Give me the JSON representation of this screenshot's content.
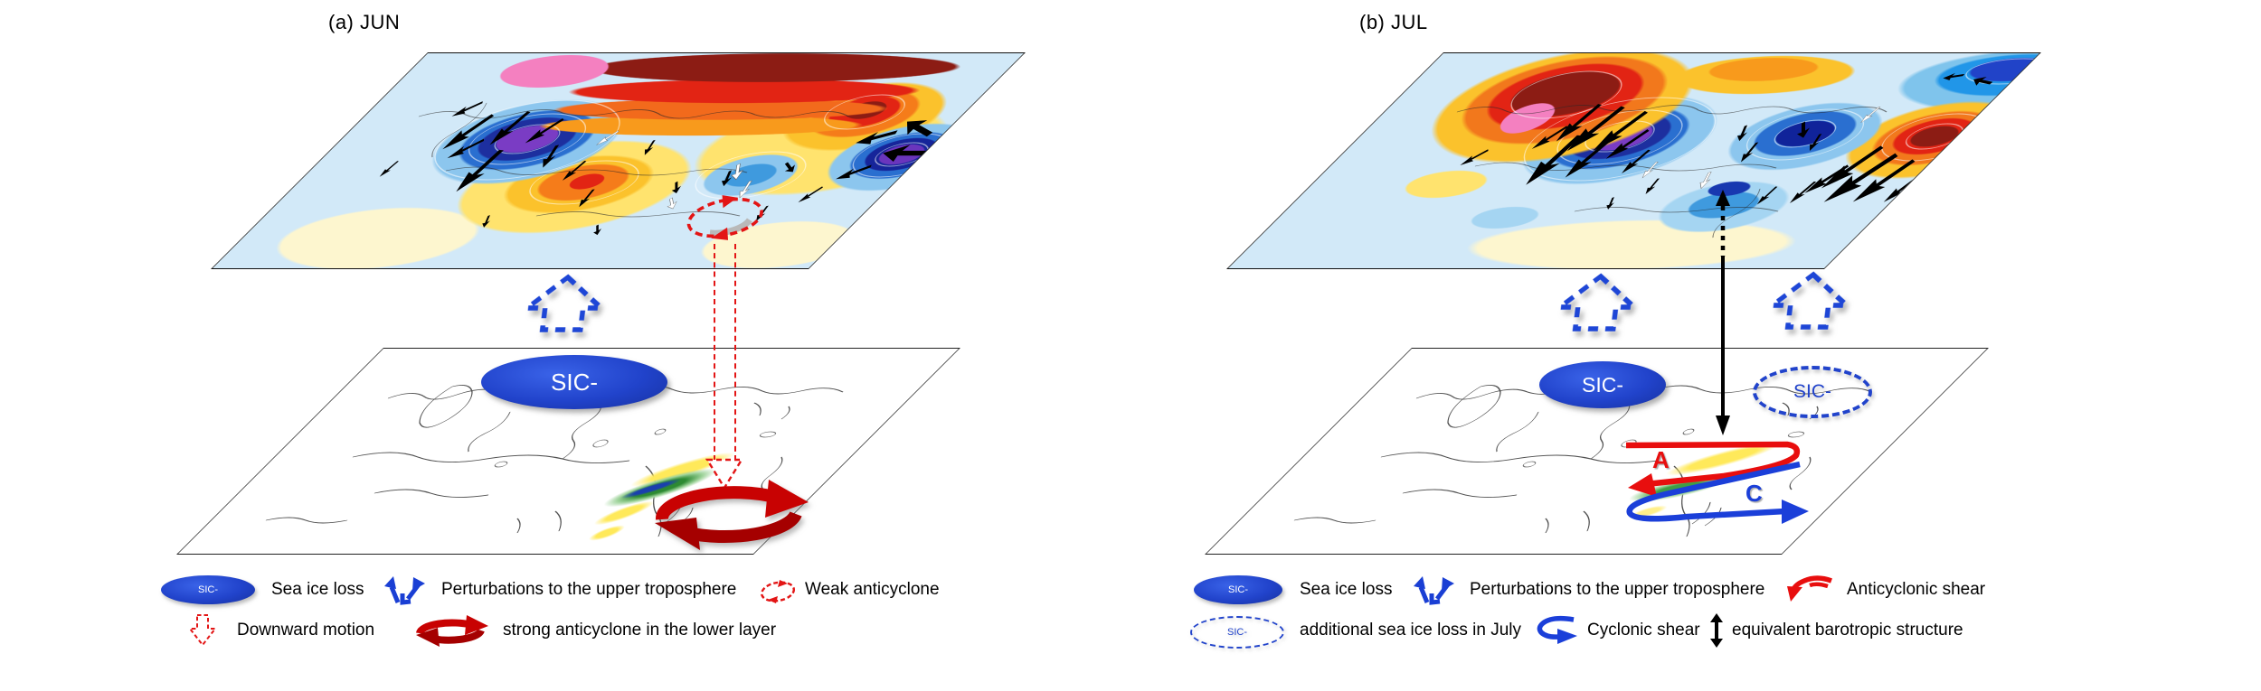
{
  "panel_a": {
    "title": "(a) JUN",
    "sic_label": "SIC-",
    "legend": {
      "sic_label": "SIC-",
      "sea_ice_loss": "Sea ice loss",
      "perturbations": "Perturbations to the upper troposphere",
      "weak_anticyclone": "Weak anticyclone",
      "downward_motion": "Downward motion",
      "strong_anticyclone": "strong anticyclone in the lower layer"
    }
  },
  "panel_b": {
    "title": "(b) JUL",
    "sic_label": "SIC-",
    "sic_additional_label": "SIC-",
    "anticyclonic_mark": "A",
    "cyclonic_mark": "C",
    "legend": {
      "sic_label": "SIC-",
      "sic_additional_label": "SIC-",
      "sea_ice_loss": "Sea ice loss",
      "perturbations": "Perturbations to the upper troposphere",
      "anticyclonic_shear": "Anticyclonic shear",
      "additional_sea_ice": "additional sea ice loss in July",
      "cyclonic_shear": "Cyclonic shear",
      "equivalent_barotropic": "equivalent barotropic structure"
    }
  },
  "colors": {
    "sic_blue": "#2143cb",
    "dashed_arrow_blue": "#1e46d6",
    "red": "#e31515",
    "strong_red": "#c80202",
    "black": "#000000"
  }
}
